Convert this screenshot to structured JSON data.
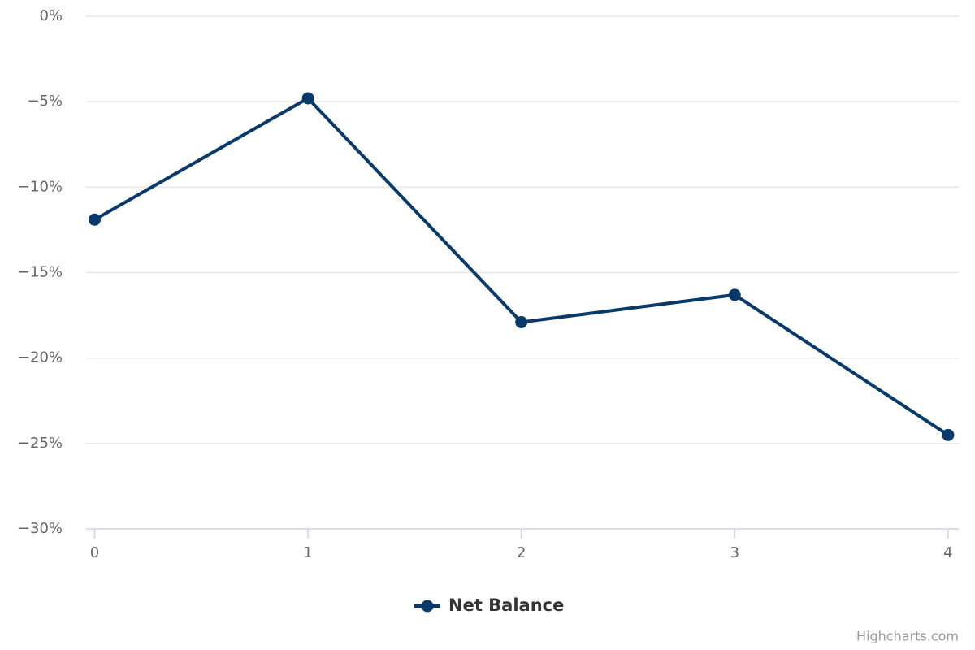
{
  "chart_data": {
    "type": "line",
    "x": [
      0,
      1,
      2,
      3,
      4
    ],
    "series": [
      {
        "name": "Net Balance",
        "color": "#073a6a",
        "values": [
          -11.9,
          -4.8,
          -17.9,
          -16.3,
          -24.5
        ]
      }
    ],
    "xlim": [
      -0.04,
      4.05
    ],
    "xticks": [
      0,
      1,
      2,
      3,
      4
    ],
    "ylim": [
      -30,
      0
    ],
    "yticks": [
      {
        "value": 0,
        "label": "0%"
      },
      {
        "value": -5,
        "label": "−5%"
      },
      {
        "value": -10,
        "label": "−10%"
      },
      {
        "value": -15,
        "label": "−15%"
      },
      {
        "value": -20,
        "label": "−20%"
      },
      {
        "value": -25,
        "label": "−25%"
      },
      {
        "value": -30,
        "label": "−30%"
      }
    ],
    "grid": true,
    "legend": "bottom",
    "credits": "Highcharts.com"
  }
}
